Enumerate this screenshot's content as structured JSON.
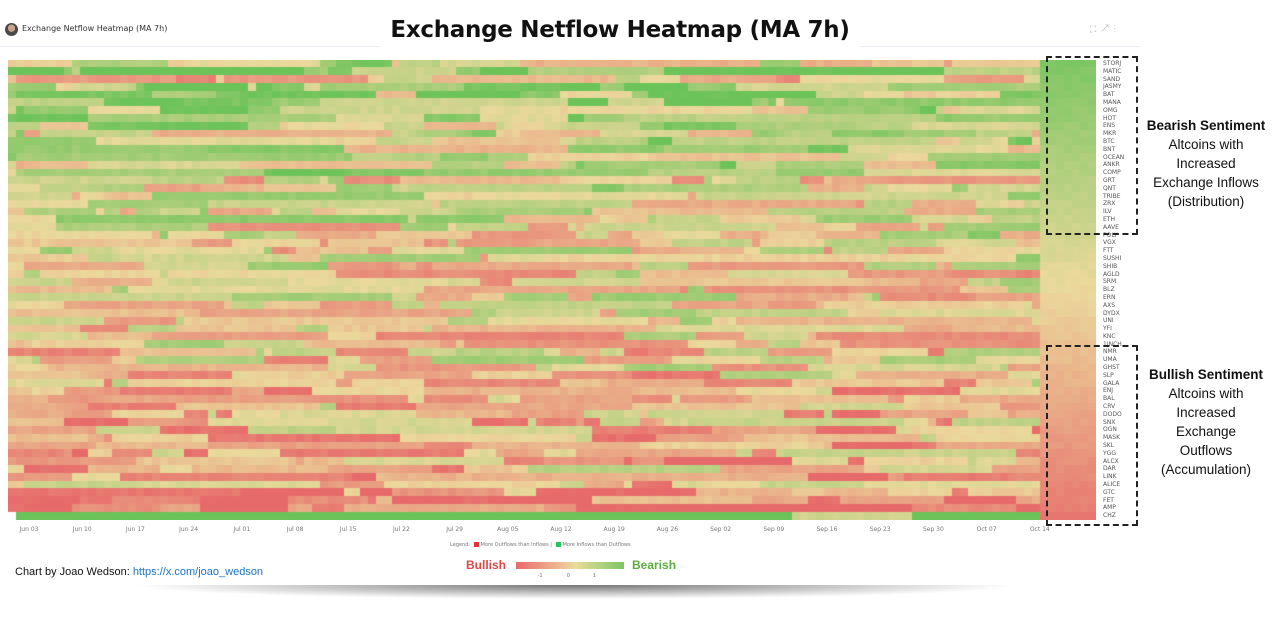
{
  "header": {
    "card_title": "Exchange Netflow Heatmap (MA 7h)",
    "big_title": "Exchange Netflow Heatmap (MA 7h)",
    "icons": [
      "expand-icon",
      "open-external-icon",
      "more-vertical-icon"
    ],
    "icon_glyphs": "⛶ ↗ ⋮"
  },
  "chart_data": {
    "type": "heatmap",
    "title": "Exchange Netflow Heatmap (MA 7h)",
    "xlabel": "",
    "ylabel": "",
    "x_ticks": [
      "Jun 03",
      "Jun 10",
      "Jun 17",
      "Jun 24",
      "Jul 01",
      "Jul 08",
      "Jul 15",
      "Jul 22",
      "Jul 29",
      "Aug 05",
      "Aug 12",
      "Aug 19",
      "Aug 26",
      "Sep 02",
      "Sep 09",
      "Sep 16",
      "Sep 23",
      "Sep 30",
      "Oct 07",
      "Oct 14"
    ],
    "rows": [
      "STORJ",
      "MATIC",
      "SAND",
      "JASMY",
      "BAT",
      "MANA",
      "OMG",
      "HOT",
      "ENS",
      "MKR",
      "BTC",
      "BNT",
      "OCEAN",
      "ANKR",
      "COMP",
      "GRT",
      "QNT",
      "TRIBE",
      "ZRX",
      "ILV",
      "ETH",
      "AAVE",
      "POLY",
      "VGX",
      "FTT",
      "SUSHI",
      "SHIB",
      "AGLD",
      "SRM",
      "BLZ",
      "ERN",
      "AXS",
      "DYDX",
      "UNI",
      "YFI",
      "KNC",
      "1INCH",
      "NMR",
      "UMA",
      "GHST",
      "SLP",
      "GALA",
      "ENJ",
      "BAL",
      "CRV",
      "DODO",
      "SNX",
      "OGN",
      "MASK",
      "SKL",
      "YGG",
      "ALCX",
      "DAR",
      "LINK",
      "ALICE",
      "GTC",
      "FET",
      "AMP",
      "CHZ"
    ],
    "row_bias": [
      0.2,
      0.9,
      -0.3,
      0.6,
      0.4,
      0.6,
      0.5,
      0.7,
      0.3,
      0.2,
      0.4,
      0.3,
      0.2,
      0.3,
      0.3,
      0.0,
      0.2,
      0.1,
      0.1,
      0.0,
      0.1,
      0.0,
      0.1,
      -0.1,
      0.0,
      0.1,
      0.0,
      -0.1,
      0.0,
      -0.1,
      0.0,
      -0.1,
      0.0,
      0.0,
      -0.1,
      -0.1,
      0.0,
      -0.2,
      -0.1,
      -0.1,
      -0.2,
      -0.2,
      -0.3,
      -0.3,
      -0.2,
      -0.3,
      -0.3,
      -0.3,
      -0.3,
      -0.4,
      -0.4,
      -0.4,
      -0.3,
      -0.5,
      -0.4,
      -0.6,
      -0.7,
      -0.9,
      0.9
    ],
    "last_block_value_top": 0.85,
    "last_block_value_bottom": -0.85,
    "columns": 136,
    "color_scale": {
      "min": -1,
      "mid": 0,
      "max": 1,
      "min_color": "#e76a6a",
      "mid_color": "#ebd99c",
      "max_color": "#6cc35a"
    },
    "legend": {
      "label": "Legend:",
      "red": "More Outflows than Inflows",
      "green": "More Inflows than Outflows",
      "red_color": "#e63232",
      "green_color": "#22c55e"
    }
  },
  "annotations": {
    "bearish": {
      "title": "Bearish Sentiment",
      "lines": [
        "Altcoins with",
        "Increased",
        "Exchange Inflows",
        "(Distribution)"
      ]
    },
    "bullish": {
      "title": "Bullish Sentiment",
      "lines": [
        "Altcoins with",
        "Increased",
        "Exchange",
        "Outflows",
        "(Accumulation)"
      ]
    }
  },
  "footer": {
    "credit_prefix": "Chart by Joao Wedson: ",
    "credit_link": "https://x.com/joao_wedson",
    "scale_left": "Bullish",
    "scale_right": "Bearish",
    "scale_ticks": [
      "-1",
      "0",
      "1"
    ]
  }
}
